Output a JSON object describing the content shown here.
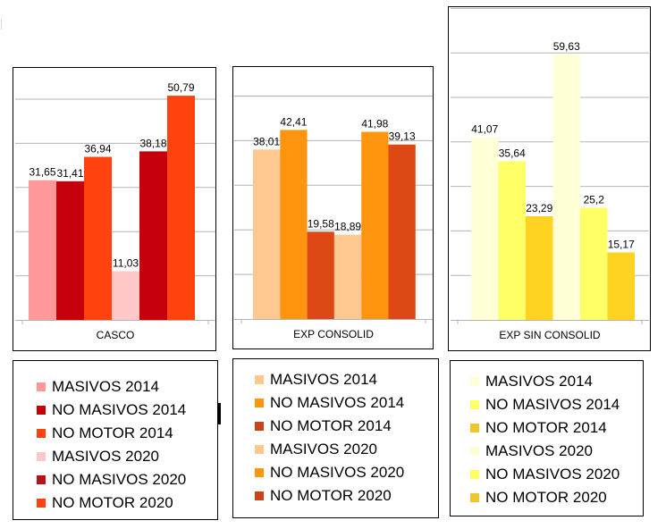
{
  "chart_data": [
    {
      "type": "bar",
      "title": "",
      "xlabel": "",
      "ylabel": "",
      "categories": [
        "CASCO"
      ],
      "ylim": [
        0,
        56
      ],
      "grid": true,
      "gridStep": 10,
      "series": [
        {
          "name": "MASIVOS 2014",
          "values": [
            31.65
          ],
          "label": "31,65",
          "color": "#FF9999"
        },
        {
          "name": "NO MASIVOS 2014",
          "values": [
            31.41
          ],
          "label": "31,41",
          "color": "#C5000B"
        },
        {
          "name": "NO MOTOR 2014",
          "values": [
            36.94
          ],
          "label": "36,94",
          "color": "#FF420E"
        },
        {
          "name": "MASIVOS 2020",
          "values": [
            11.03
          ],
          "label": "11,03",
          "color": "#FFC8C8"
        },
        {
          "name": "NO MASIVOS 2020",
          "values": [
            38.18
          ],
          "label": "38,18",
          "color": "#C5000B"
        },
        {
          "name": "NO MOTOR 2020",
          "values": [
            50.79
          ],
          "label": "50,79",
          "color": "#FF420E"
        }
      ],
      "legend": {
        "placement": "bottom",
        "items": [
          {
            "label": "MASIVOS 2014",
            "color": "#FF9999"
          },
          {
            "label": "NO MASIVOS 2014",
            "color": "#C5000B"
          },
          {
            "label": "NO MOTOR 2014",
            "color": "#FF420E"
          },
          {
            "label": "MASIVOS 2020",
            "color": "#FFC8C8"
          },
          {
            "label": "NO MASIVOS 2020",
            "color": "#B5121B"
          },
          {
            "label": "NO MOTOR 2020",
            "color": "#FF420E"
          }
        ]
      }
    },
    {
      "type": "bar",
      "title": "",
      "xlabel": "",
      "ylabel": "",
      "categories": [
        "EXP CONSOLID"
      ],
      "ylim": [
        0,
        56
      ],
      "grid": true,
      "gridStep": 10,
      "series": [
        {
          "name": "MASIVOS 2014",
          "values": [
            38.01
          ],
          "label": "38,01",
          "color": "#FFC890"
        },
        {
          "name": "NO MASIVOS 2014",
          "values": [
            42.41
          ],
          "label": "42,41",
          "color": "#FF950E"
        },
        {
          "name": "NO MOTOR 2014",
          "values": [
            19.58
          ],
          "label": "19,58",
          "color": "#DD4814"
        },
        {
          "name": "MASIVOS 2020",
          "values": [
            18.89
          ],
          "label": "18,89",
          "color": "#FFC890"
        },
        {
          "name": "NO MASIVOS 2020",
          "values": [
            41.98
          ],
          "label": "41,98",
          "color": "#FF950E"
        },
        {
          "name": "NO MOTOR 2020",
          "values": [
            39.13
          ],
          "label": "39,13",
          "color": "#DD4814"
        }
      ],
      "legend": {
        "placement": "bottom",
        "items": [
          {
            "label": "MASIVOS 2014",
            "color": "#FFC890"
          },
          {
            "label": "NO MASIVOS 2014",
            "color": "#FF950E"
          },
          {
            "label": "NO MOTOR 2014",
            "color": "#C9441A"
          },
          {
            "label": "MASIVOS 2020",
            "color": "#FFC890"
          },
          {
            "label": "NO MASIVOS 2020",
            "color": "#FF950E"
          },
          {
            "label": "NO MOTOR 2020",
            "color": "#C9441A"
          }
        ]
      }
    },
    {
      "type": "bar",
      "title": "",
      "xlabel": "",
      "ylabel": "",
      "categories": [
        "EXP SIN CONSOLID"
      ],
      "ylim": [
        0,
        70
      ],
      "grid": true,
      "gridStep": 10,
      "series": [
        {
          "name": "MASIVOS 2014",
          "values": [
            41.07
          ],
          "label": "41,07",
          "color": "#FFFFD7"
        },
        {
          "name": "NO MASIVOS 2014",
          "values": [
            35.64
          ],
          "label": "35,64",
          "color": "#FFFF66"
        },
        {
          "name": "NO MOTOR 2014",
          "values": [
            23.29
          ],
          "label": "23,29",
          "color": "#FFD320"
        },
        {
          "name": "MASIVOS 2020",
          "values": [
            59.63
          ],
          "label": "59,63",
          "color": "#FFFFD7"
        },
        {
          "name": "NO MASIVOS 2020",
          "values": [
            25.2
          ],
          "label": "25,2",
          "color": "#FFFF66"
        },
        {
          "name": "NO MOTOR 2020",
          "values": [
            15.17
          ],
          "label": "15,17",
          "color": "#FFD320"
        }
      ],
      "legend": {
        "placement": "bottom",
        "items": [
          {
            "label": "MASIVOS 2014",
            "color": "#FFFFD7"
          },
          {
            "label": "NO MASIVOS 2014",
            "color": "#FFFF66"
          },
          {
            "label": "NO MOTOR 2014",
            "color": "#F2C530"
          },
          {
            "label": "MASIVOS 2020",
            "color": "#FFFFD7"
          },
          {
            "label": "NO MASIVOS 2020",
            "color": "#FFFF66"
          },
          {
            "label": "NO MOTOR 2020",
            "color": "#F2C530"
          }
        ]
      }
    }
  ]
}
